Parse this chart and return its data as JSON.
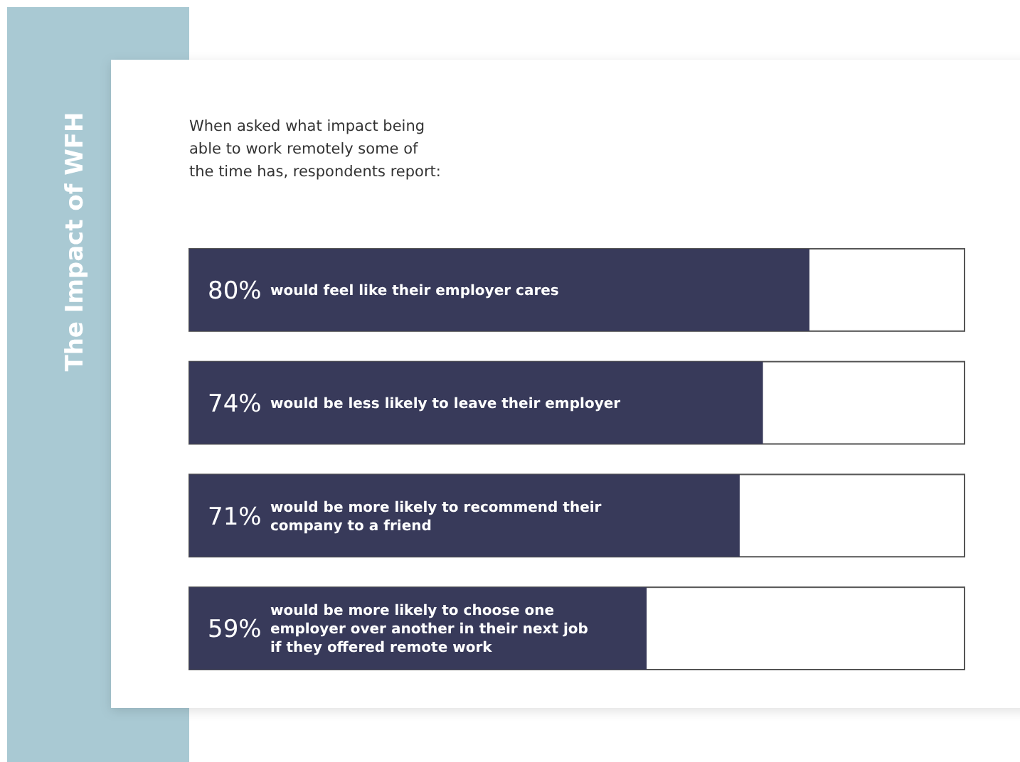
{
  "chart_data": {
    "type": "bar",
    "orientation": "horizontal",
    "title": "The Impact of WFH",
    "subtitle": "When asked what impact being\nable to work remotely some of\nthe time has, respondents report:",
    "categories": [
      "would feel like their employer cares",
      "would be less likely to leave their employer",
      "would be more likely to recommend their\ncompany to a friend",
      "would be more likely to choose one\nemployer over another in their next job\nif they offered remote work"
    ],
    "values": [
      80,
      74,
      71,
      59
    ],
    "color": "#383a5a",
    "xlim": [
      0,
      100
    ],
    "value_labels": [
      "80%",
      "74%",
      "71%",
      "59%"
    ]
  }
}
